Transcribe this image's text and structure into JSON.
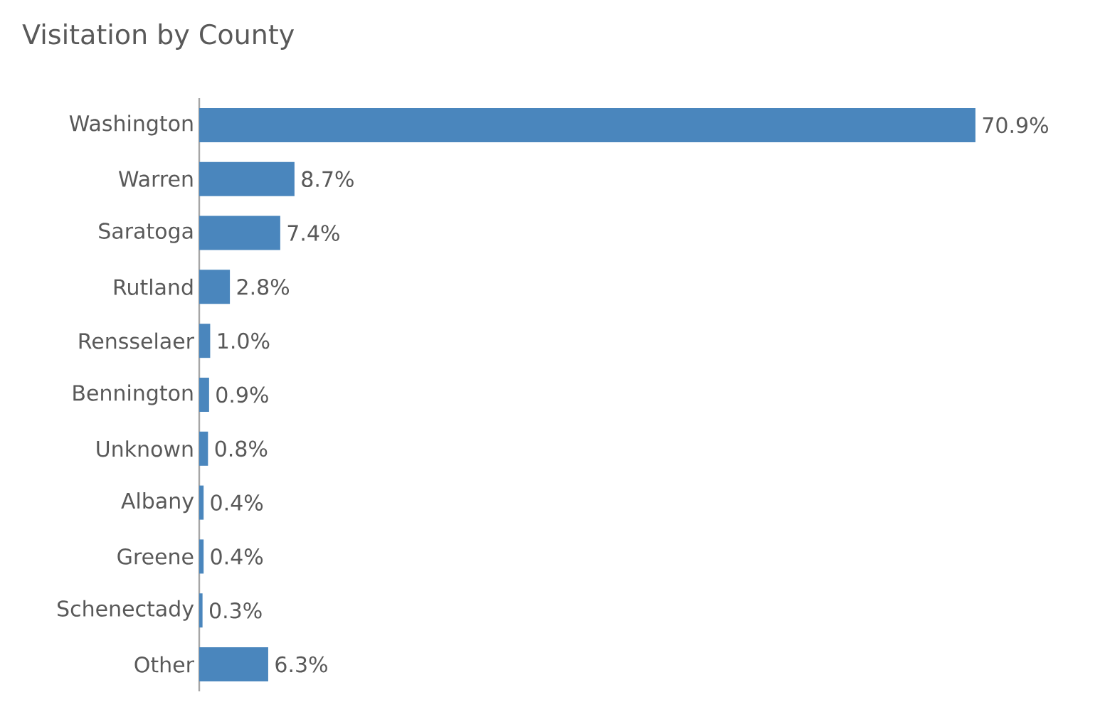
{
  "chart_data": {
    "type": "bar",
    "orientation": "horizontal",
    "title": "Visitation by County",
    "categories": [
      "Washington",
      "Warren",
      "Saratoga",
      "Rutland",
      "Rensselaer",
      "Bennington",
      "Unknown",
      "Albany",
      "Greene",
      "Schenectady",
      "Other"
    ],
    "values": [
      70.9,
      8.7,
      7.4,
      2.8,
      1.0,
      0.9,
      0.8,
      0.4,
      0.4,
      0.3,
      6.3
    ],
    "value_labels": [
      "70.9%",
      "8.7%",
      "7.4%",
      "2.8%",
      "1.0%",
      "0.9%",
      "0.8%",
      "0.4%",
      "0.4%",
      "0.3%",
      "6.3%"
    ],
    "color": "#4a86bd"
  }
}
